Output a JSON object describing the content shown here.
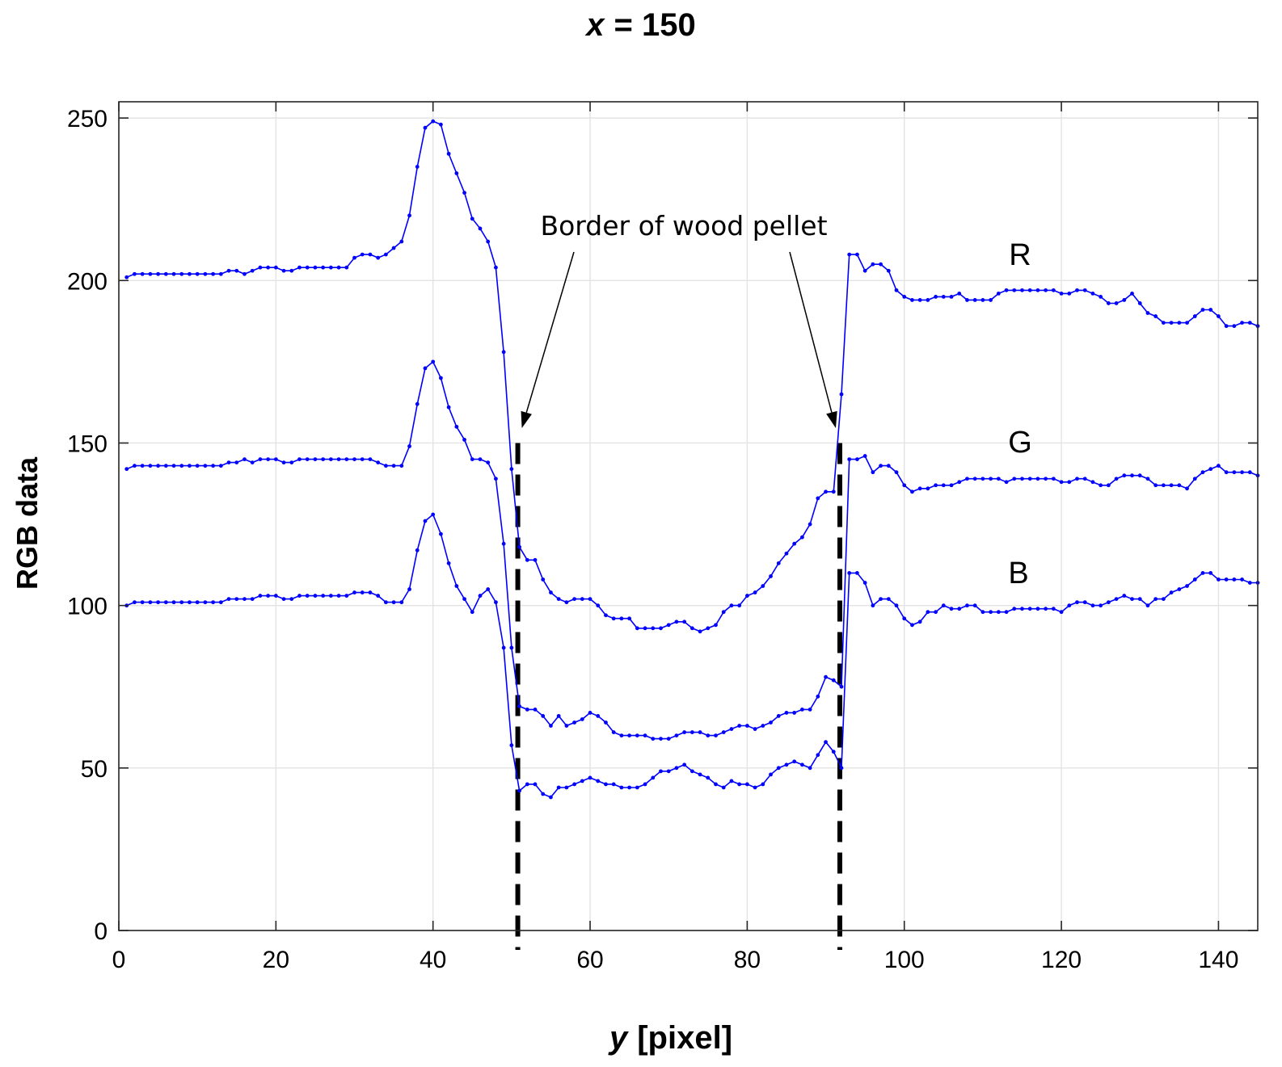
{
  "chart_data": {
    "type": "line",
    "title_var": "x",
    "title_value": "= 150",
    "xlabel_var": "y",
    "xlabel_unit": "[pixel]",
    "ylabel": "RGB data",
    "xlim": [
      0,
      145
    ],
    "ylim": [
      0,
      255
    ],
    "xticks": [
      0,
      20,
      40,
      60,
      80,
      100,
      120,
      140
    ],
    "yticks": [
      0,
      50,
      100,
      150,
      200,
      250
    ],
    "grid": true,
    "x": [
      1,
      2,
      3,
      4,
      5,
      6,
      7,
      8,
      9,
      10,
      11,
      12,
      13,
      14,
      15,
      16,
      17,
      18,
      19,
      20,
      21,
      22,
      23,
      24,
      25,
      26,
      27,
      28,
      29,
      30,
      31,
      32,
      33,
      34,
      35,
      36,
      37,
      38,
      39,
      40,
      41,
      42,
      43,
      44,
      45,
      46,
      47,
      48,
      49,
      50,
      51,
      52,
      53,
      54,
      55,
      56,
      57,
      58,
      59,
      60,
      61,
      62,
      63,
      64,
      65,
      66,
      67,
      68,
      69,
      70,
      71,
      72,
      73,
      74,
      75,
      76,
      77,
      78,
      79,
      80,
      81,
      82,
      83,
      84,
      85,
      86,
      87,
      88,
      89,
      90,
      91,
      92,
      93,
      94,
      95,
      96,
      97,
      98,
      99,
      100,
      101,
      102,
      103,
      104,
      105,
      106,
      107,
      108,
      109,
      110,
      111,
      112,
      113,
      114,
      115,
      116,
      117,
      118,
      119,
      120,
      121,
      122,
      123,
      124,
      125,
      126,
      127,
      128,
      129,
      130,
      131,
      132,
      133,
      134,
      135,
      136,
      137,
      138,
      139,
      140,
      141,
      142,
      143,
      144,
      145
    ],
    "series": [
      {
        "name": "R",
        "values": [
          201,
          202,
          202,
          202,
          202,
          202,
          202,
          202,
          202,
          202,
          202,
          202,
          202,
          203,
          203,
          202,
          203,
          204,
          204,
          204,
          203,
          203,
          204,
          204,
          204,
          204,
          204,
          204,
          204,
          207,
          208,
          208,
          207,
          208,
          210,
          212,
          220,
          235,
          247,
          249,
          248,
          239,
          233,
          227,
          219,
          216,
          212,
          204,
          178,
          142,
          118,
          114,
          114,
          108,
          104,
          102,
          101,
          102,
          102,
          102,
          100,
          97,
          96,
          96,
          96,
          93,
          93,
          93,
          93,
          94,
          95,
          95,
          93,
          92,
          93,
          94,
          98,
          100,
          100,
          103,
          104,
          106,
          109,
          113,
          116,
          119,
          121,
          125,
          133,
          135,
          135,
          165,
          208,
          208,
          203,
          205,
          205,
          203,
          197,
          195,
          194,
          194,
          194,
          195,
          195,
          195,
          196,
          194,
          194,
          194,
          194,
          196,
          197,
          197,
          197,
          197,
          197,
          197,
          197,
          196,
          196,
          197,
          197,
          196,
          195,
          193,
          193,
          194,
          196,
          193,
          190,
          189,
          187,
          187,
          187,
          187,
          189,
          191,
          191,
          189,
          186,
          186,
          187,
          187,
          186
        ]
      },
      {
        "name": "G",
        "values": [
          142,
          143,
          143,
          143,
          143,
          143,
          143,
          143,
          143,
          143,
          143,
          143,
          143,
          144,
          144,
          145,
          144,
          145,
          145,
          145,
          144,
          144,
          145,
          145,
          145,
          145,
          145,
          145,
          145,
          145,
          145,
          145,
          144,
          143,
          143,
          143,
          149,
          162,
          173,
          175,
          170,
          161,
          155,
          151,
          145,
          145,
          144,
          139,
          119,
          87,
          69,
          68,
          68,
          66,
          63,
          66,
          63,
          64,
          65,
          67,
          66,
          64,
          61,
          60,
          60,
          60,
          60,
          59,
          59,
          59,
          60,
          61,
          61,
          61,
          60,
          60,
          61,
          62,
          63,
          63,
          62,
          63,
          64,
          66,
          67,
          67,
          68,
          68,
          72,
          78,
          77,
          75,
          145,
          145,
          146,
          141,
          143,
          143,
          141,
          137,
          135,
          136,
          136,
          137,
          137,
          137,
          138,
          139,
          139,
          139,
          139,
          139,
          138,
          139,
          139,
          139,
          139,
          139,
          139,
          138,
          138,
          139,
          139,
          138,
          137,
          137,
          139,
          140,
          140,
          140,
          139,
          137,
          137,
          137,
          137,
          136,
          139,
          141,
          142,
          143,
          141,
          141,
          141,
          141,
          140
        ]
      },
      {
        "name": "B",
        "values": [
          100,
          101,
          101,
          101,
          101,
          101,
          101,
          101,
          101,
          101,
          101,
          101,
          101,
          102,
          102,
          102,
          102,
          103,
          103,
          103,
          102,
          102,
          103,
          103,
          103,
          103,
          103,
          103,
          103,
          104,
          104,
          104,
          103,
          101,
          101,
          101,
          105,
          117,
          126,
          128,
          122,
          113,
          106,
          102,
          98,
          103,
          105,
          101,
          87,
          57,
          43,
          45,
          45,
          42,
          41,
          44,
          44,
          45,
          46,
          47,
          46,
          45,
          45,
          44,
          44,
          44,
          45,
          47,
          49,
          49,
          50,
          51,
          49,
          48,
          47,
          45,
          44,
          46,
          45,
          45,
          44,
          45,
          48,
          50,
          51,
          52,
          51,
          50,
          54,
          58,
          55,
          50,
          110,
          110,
          107,
          100,
          102,
          102,
          100,
          96,
          94,
          95,
          98,
          98,
          100,
          99,
          99,
          100,
          100,
          98,
          98,
          98,
          98,
          99,
          99,
          99,
          99,
          99,
          99,
          98,
          100,
          101,
          101,
          100,
          100,
          101,
          102,
          103,
          102,
          102,
          100,
          102,
          102,
          104,
          105,
          106,
          108,
          110,
          110,
          108,
          108,
          108,
          108,
          107,
          107
        ]
      }
    ],
    "annotations": [
      {
        "text": "Border of wood pellet",
        "x_at": [
          51,
          92
        ]
      }
    ],
    "vlines": [
      51,
      92
    ]
  }
}
